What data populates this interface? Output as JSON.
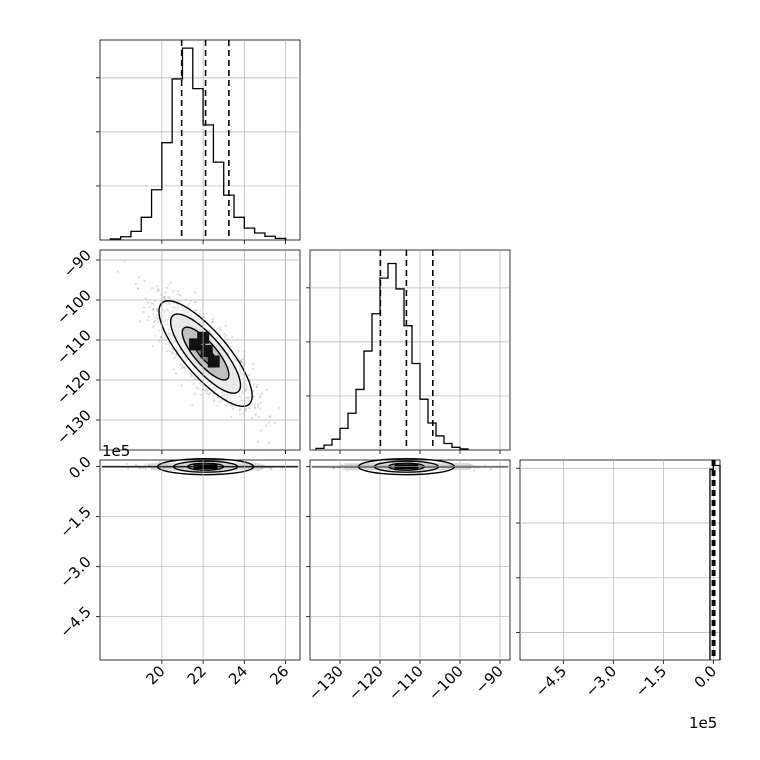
{
  "chart_data": [
    {
      "panel": "hist-1",
      "type": "histogram",
      "x": [
        17.5,
        18.0,
        18.5,
        19.0,
        19.5,
        20.0,
        20.5,
        21.0,
        21.5,
        22.0,
        22.5,
        23.0,
        23.5,
        24.0,
        24.5,
        25.0,
        25.5,
        26.0
      ],
      "values": [
        2,
        6,
        16,
        42,
        93,
        180,
        298,
        355,
        280,
        213,
        144,
        83,
        42,
        22,
        13,
        7,
        3
      ],
      "xlim": [
        17.0,
        26.7
      ],
      "ylim": [
        0,
        370
      ],
      "xticks": [
        20,
        22,
        24,
        26
      ],
      "yticks": [
        100,
        200,
        300
      ],
      "quantiles": [
        20.96,
        22.12,
        23.25
      ],
      "grid": true
    },
    {
      "panel": "hist-2",
      "type": "histogram",
      "x": [
        -136,
        -134,
        -132,
        -130,
        -128,
        -126,
        -124,
        -122,
        -120,
        -118,
        -116,
        -114,
        -112,
        -110,
        -108,
        -106,
        -104,
        -102,
        -100,
        -98
      ],
      "values": [
        3,
        9,
        20,
        40,
        68,
        112,
        183,
        252,
        318,
        345,
        298,
        230,
        160,
        94,
        50,
        26,
        12,
        5,
        2
      ],
      "xlim": [
        -137.5,
        -87.5
      ],
      "ylim": [
        0,
        370
      ],
      "xticks": [
        -130,
        -120,
        -110,
        -100,
        -90
      ],
      "yticks": [
        100,
        200,
        300
      ],
      "quantiles": [
        -119.9,
        -113.4,
        -106.8
      ],
      "grid": true
    },
    {
      "panel": "hist-3",
      "type": "histogram",
      "x": [
        -10000,
        0,
        20000
      ],
      "values": [
        348,
        355
      ],
      "xlim": [
        -580000,
        20000
      ],
      "ylim": [
        0,
        365
      ],
      "xticks": [
        -450000,
        -300000,
        -150000,
        0
      ],
      "xticklabels": [
        "−4.5",
        "−3.0",
        "−1.5",
        "0.0"
      ],
      "offset_text": "1e5",
      "quantiles": [
        -2800,
        500,
        4200
      ],
      "yticks": [
        50,
        150,
        250,
        350
      ],
      "grid": true
    },
    {
      "panel": "joint-1-2",
      "type": "scatter+contour",
      "xlim": [
        17.0,
        26.7
      ],
      "ylim": [
        -137.5,
        -87.5
      ],
      "xticks": [
        20,
        22,
        24,
        26
      ],
      "yticks": [
        -130,
        -120,
        -110,
        -100,
        -90
      ],
      "yticklabels": [
        "−130",
        "−120",
        "−110",
        "−100",
        "−90"
      ],
      "center": [
        22.12,
        -113.4
      ],
      "sigma": [
        1.13,
        6.6
      ],
      "correlation": -0.8,
      "contour_levels_sigma": [
        0.5,
        1.0,
        1.5,
        2.0
      ],
      "grid": true
    },
    {
      "panel": "joint-1-3",
      "type": "scatter+contour",
      "xlim": [
        17.0,
        26.7
      ],
      "ylim": [
        -580000,
        20000
      ],
      "yticks": [
        -450000,
        -300000,
        -150000,
        0
      ],
      "yticklabels": [
        "−4.5",
        "−3.0",
        "−1.5",
        "0.0"
      ],
      "offset_text": "1e5",
      "center": [
        22.12,
        0
      ],
      "sigma": [
        1.13,
        4000
      ],
      "grid": true
    },
    {
      "panel": "joint-2-3",
      "type": "scatter+contour",
      "xlim": [
        -137.5,
        -87.5
      ],
      "ylim": [
        -580000,
        20000
      ],
      "xticks": [
        -130,
        -120,
        -110,
        -100,
        -90
      ],
      "xticklabels": [
        "−130",
        "−120",
        "−110",
        "−100",
        "−90"
      ],
      "center": [
        -113.4,
        0
      ],
      "sigma": [
        6.6,
        4000
      ],
      "grid": true
    }
  ],
  "colors": {
    "line": "#000000",
    "grid": "#b0b0b0",
    "scatter": "#999999"
  }
}
